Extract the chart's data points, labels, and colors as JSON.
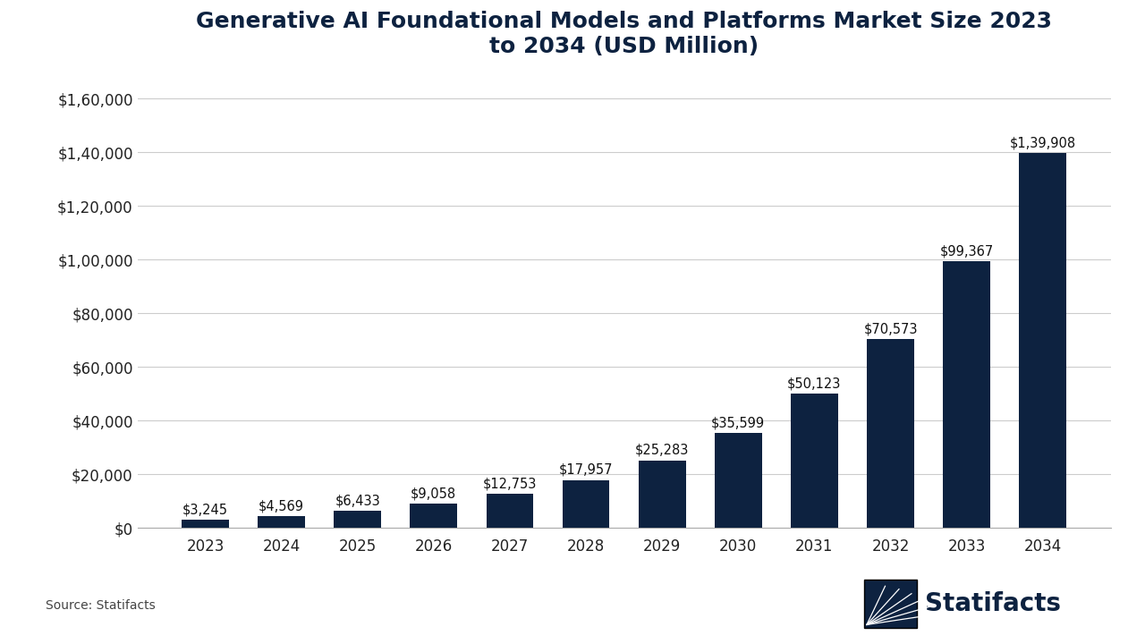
{
  "title": "Generative AI Foundational Models and Platforms Market Size 2023\nto 2034 (USD Million)",
  "years": [
    2023,
    2024,
    2025,
    2026,
    2027,
    2028,
    2029,
    2030,
    2031,
    2032,
    2033,
    2034
  ],
  "values": [
    3245,
    4569,
    6433,
    9058,
    12753,
    17957,
    25283,
    35599,
    50123,
    70573,
    99367,
    139908
  ],
  "labels": [
    "$3,245",
    "$4,569",
    "$6,433",
    "$9,058",
    "$12,753",
    "$17,957",
    "$25,283",
    "$35,599",
    "$50,123",
    "$70,573",
    "$99,367",
    "$1,39,908"
  ],
  "bar_color": "#0d2240",
  "background_color": "#ffffff",
  "title_fontsize": 18,
  "tick_fontsize": 12,
  "label_fontsize": 10.5,
  "source_text": "Source: Statifacts",
  "ylim": [
    0,
    168000
  ],
  "yticks": [
    0,
    20000,
    40000,
    60000,
    80000,
    100000,
    120000,
    140000,
    160000
  ],
  "ytick_labels": [
    "$0",
    "$20,000",
    "$40,000",
    "$60,000",
    "$80,000",
    "$1,00,000",
    "$1,20,000",
    "$1,40,000",
    "$1,60,000"
  ],
  "grid_color": "#cccccc",
  "text_color": "#0d2240"
}
